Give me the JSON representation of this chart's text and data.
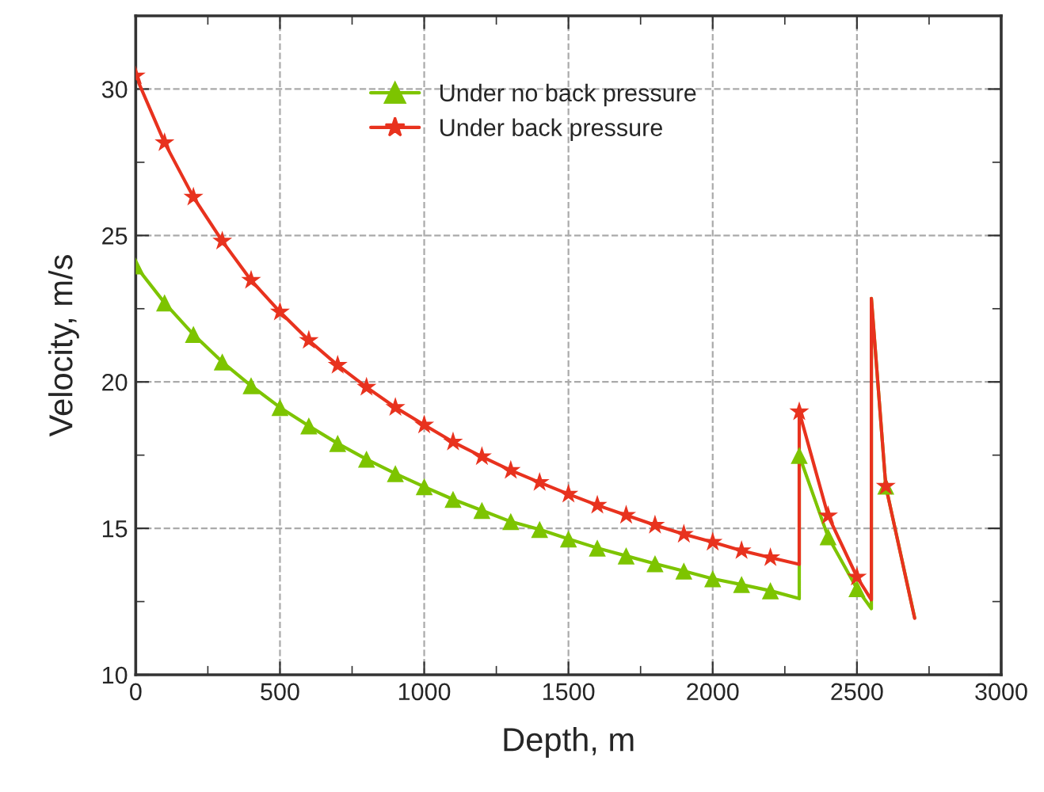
{
  "chart_data": {
    "type": "line",
    "xlabel": "Depth, m",
    "ylabel": "Velocity, m/s",
    "xlim": [
      0,
      3000
    ],
    "ylim": [
      10,
      32.5
    ],
    "xticks": [
      0,
      500,
      1000,
      1500,
      2000,
      2500,
      3000
    ],
    "yticks": [
      10,
      15,
      20,
      25,
      30
    ],
    "grid": true,
    "legend": "top",
    "series": [
      {
        "color": "#7dc400",
        "marker": "none",
        "x": [
          0,
          100,
          200,
          300,
          400,
          500,
          600,
          700,
          800,
          900,
          1000,
          1100,
          1200,
          1300,
          1400,
          1500,
          1600,
          1700,
          1800,
          1900,
          2000,
          2100,
          2200,
          2300,
          2300,
          2400,
          2500,
          2550,
          2550,
          2600,
          2700
        ],
        "values": [
          23.96,
          22.7,
          21.62,
          20.68,
          19.87,
          19.13,
          18.5,
          17.9,
          17.36,
          16.87,
          16.42,
          15.99,
          15.61,
          15.23,
          14.96,
          14.64,
          14.33,
          14.06,
          13.79,
          13.54,
          13.28,
          13.08,
          12.87,
          12.6,
          17.49,
          14.71,
          12.94,
          12.26,
          22.85,
          16.44,
          11.95
        ]
      },
      {
        "color": "#e8321e",
        "marker": "none",
        "x": [
          0,
          100,
          200,
          300,
          400,
          500,
          600,
          700,
          800,
          900,
          1000,
          1100,
          1200,
          1300,
          1400,
          1500,
          1600,
          1700,
          1800,
          1900,
          2000,
          2100,
          2200,
          2300,
          2300,
          2400,
          2500,
          2550,
          2550,
          2600,
          2700
        ],
        "values": [
          30.45,
          28.17,
          26.31,
          24.81,
          23.47,
          22.39,
          21.42,
          20.57,
          19.82,
          19.13,
          18.53,
          17.95,
          17.45,
          16.98,
          16.57,
          16.17,
          15.79,
          15.45,
          15.11,
          14.8,
          14.53,
          14.24,
          14.0,
          13.77,
          18.98,
          15.43,
          13.34,
          12.56,
          22.85,
          16.44,
          11.93
        ]
      },
      {
        "type": "scatter",
        "name": "Under no back pressure",
        "color": "#7dc400",
        "marker": "triangle",
        "x": [
          0,
          100,
          200,
          300,
          400,
          500,
          600,
          700,
          800,
          900,
          1000,
          1100,
          1200,
          1300,
          1400,
          1500,
          1600,
          1700,
          1800,
          1900,
          2000,
          2100,
          2200,
          2300,
          2400,
          2500,
          2600
        ],
        "values": [
          23.96,
          22.7,
          21.62,
          20.68,
          19.87,
          19.13,
          18.5,
          17.9,
          17.36,
          16.87,
          16.42,
          15.99,
          15.61,
          15.23,
          14.96,
          14.64,
          14.33,
          14.06,
          13.79,
          13.54,
          13.28,
          13.08,
          12.87,
          17.49,
          14.71,
          12.94,
          16.44
        ]
      },
      {
        "type": "scatter",
        "name": "Under back pressure",
        "color": "#e8321e",
        "marker": "star",
        "x": [
          0,
          100,
          200,
          300,
          400,
          500,
          600,
          700,
          800,
          900,
          1000,
          1100,
          1200,
          1300,
          1400,
          1500,
          1600,
          1700,
          1800,
          1900,
          2000,
          2100,
          2200,
          2300,
          2400,
          2500,
          2600
        ],
        "values": [
          30.45,
          28.17,
          26.31,
          24.81,
          23.47,
          22.39,
          21.42,
          20.57,
          19.82,
          19.13,
          18.53,
          17.95,
          17.45,
          16.98,
          16.57,
          16.17,
          15.79,
          15.45,
          15.11,
          14.8,
          14.53,
          14.24,
          14.0,
          18.98,
          15.43,
          13.34,
          16.44
        ]
      }
    ]
  }
}
